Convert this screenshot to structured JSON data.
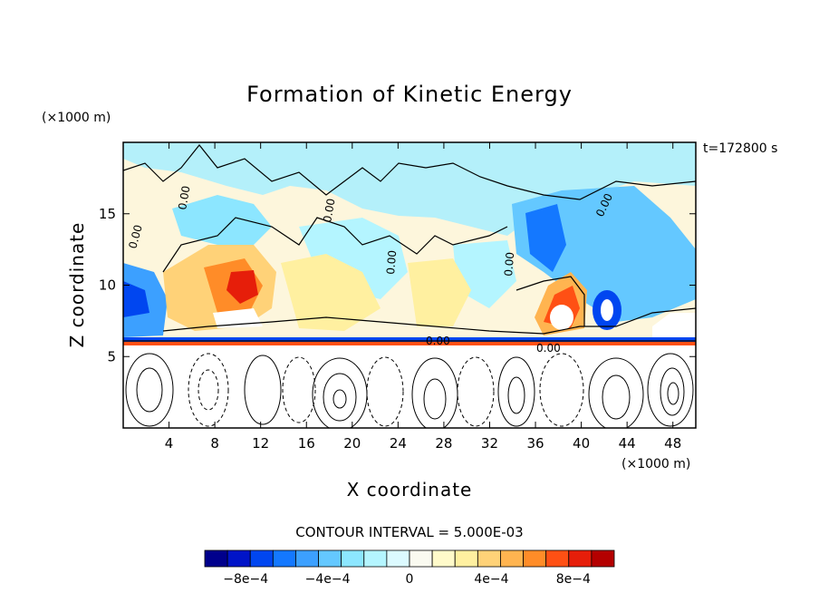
{
  "chart_data": {
    "type": "heatmap",
    "title": "Formation of Kinetic Energy",
    "time_label": "t=172800 s",
    "xlabel": "X coordinate",
    "ylabel": "Z coordinate",
    "x_unit": "(×1000 m)",
    "y_unit": "(×1000 m)",
    "xlim": [
      0,
      50
    ],
    "ylim": [
      0,
      20
    ],
    "x_ticks": [
      4,
      8,
      12,
      16,
      20,
      24,
      28,
      32,
      36,
      40,
      44,
      48
    ],
    "x_tick_labels": [
      "4",
      "8",
      "12",
      "16",
      "20",
      "24",
      "28",
      "32",
      "36",
      "40",
      "44",
      "48"
    ],
    "y_ticks": [
      5,
      10,
      15
    ],
    "y_tick_labels": [
      "5",
      "10",
      "15"
    ],
    "contour_label": "0.00",
    "contour_interval_text": "CONTOUR INTERVAL = 5.000E-03",
    "colorbar": {
      "min": -0.001,
      "max": 0.001,
      "colors": [
        "#00008c",
        "#0014c8",
        "#0046f0",
        "#1478ff",
        "#3ca0ff",
        "#64c8ff",
        "#8ce6ff",
        "#b4f5ff",
        "#dcfaff",
        "#fafaf0",
        "#fffaca",
        "#fff0a0",
        "#ffd278",
        "#ffb450",
        "#ff8c28",
        "#ff5014",
        "#e61e0a",
        "#b40000"
      ],
      "tick_values": [
        -0.0008,
        -0.0004,
        0,
        0.0004,
        0.0008
      ],
      "tick_labels": [
        "−8e−4",
        "−4e−4",
        "0",
        "4e−4",
        "8e−4"
      ]
    }
  }
}
